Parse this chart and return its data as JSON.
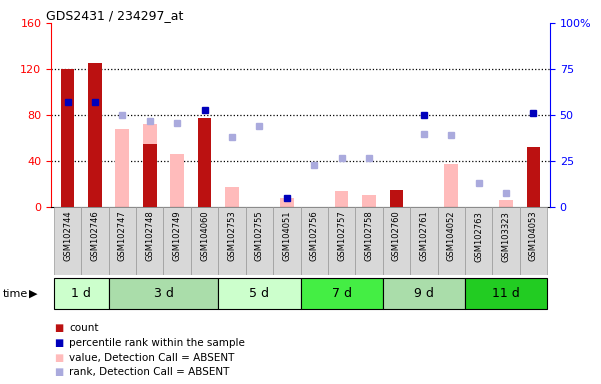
{
  "title": "GDS2431 / 234297_at",
  "samples": [
    "GSM102744",
    "GSM102746",
    "GSM102747",
    "GSM102748",
    "GSM102749",
    "GSM104060",
    "GSM102753",
    "GSM102755",
    "GSM104051",
    "GSM102756",
    "GSM102757",
    "GSM102758",
    "GSM102760",
    "GSM102761",
    "GSM104052",
    "GSM102763",
    "GSM103323",
    "GSM104053"
  ],
  "count": [
    120,
    125,
    null,
    55,
    null,
    78,
    null,
    null,
    null,
    null,
    null,
    null,
    15,
    null,
    null,
    null,
    null,
    52
  ],
  "percentile_right": [
    57,
    57,
    null,
    null,
    null,
    53,
    null,
    null,
    5,
    null,
    null,
    null,
    null,
    50,
    null,
    null,
    null,
    51
  ],
  "value_absent": [
    null,
    null,
    68,
    72,
    46,
    null,
    18,
    null,
    8,
    null,
    14,
    11,
    null,
    null,
    38,
    null,
    6,
    null
  ],
  "rank_absent": [
    null,
    null,
    50,
    47,
    46,
    null,
    38,
    44,
    null,
    23,
    27,
    27,
    null,
    40,
    39,
    13,
    8,
    null
  ],
  "ylim_left": [
    0,
    160
  ],
  "ylim_right": [
    0,
    100
  ],
  "yticks_left": [
    0,
    40,
    80,
    120,
    160
  ],
  "ytick_labels_left": [
    "0",
    "40",
    "80",
    "120",
    "160"
  ],
  "yticks_right": [
    0,
    25,
    50,
    75,
    100
  ],
  "ytick_labels_right": [
    "0",
    "25",
    "50",
    "75",
    "100%"
  ],
  "bar_color_count": "#bb1111",
  "bar_color_absent": "#ffbbbb",
  "dot_color_percentile": "#0000bb",
  "dot_color_rank_absent": "#aaaadd",
  "background_plot": "#ffffff",
  "background_fig": "#ffffff",
  "group_defs": [
    {
      "start": 0,
      "end": 1,
      "label": "1 d",
      "color": "#ccffcc"
    },
    {
      "start": 2,
      "end": 5,
      "label": "3 d",
      "color": "#aaddaa"
    },
    {
      "start": 6,
      "end": 8,
      "label": "5 d",
      "color": "#ccffcc"
    },
    {
      "start": 9,
      "end": 11,
      "label": "7 d",
      "color": "#44ee44"
    },
    {
      "start": 12,
      "end": 14,
      "label": "9 d",
      "color": "#aaddaa"
    },
    {
      "start": 15,
      "end": 17,
      "label": "11 d",
      "color": "#22cc22"
    }
  ],
  "legend_items": [
    "count",
    "percentile rank within the sample",
    "value, Detection Call = ABSENT",
    "rank, Detection Call = ABSENT"
  ],
  "legend_colors": [
    "#bb1111",
    "#0000bb",
    "#ffbbbb",
    "#aaaadd"
  ]
}
